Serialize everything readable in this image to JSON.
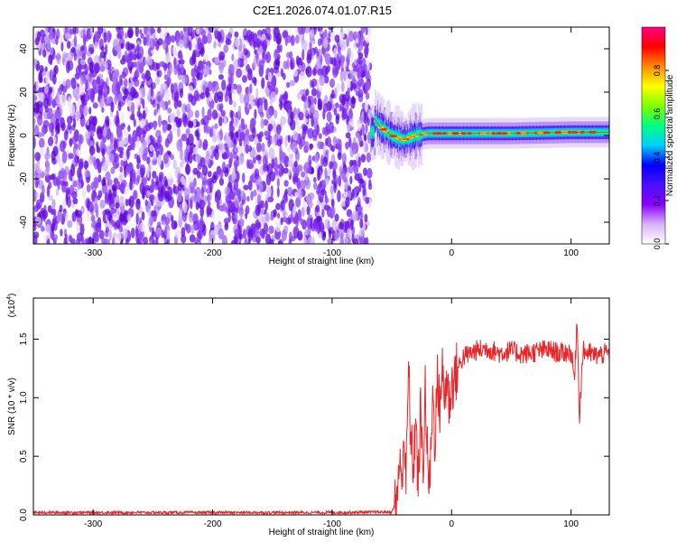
{
  "figure": {
    "title": "C2E1.2026.074.01.07.R15"
  },
  "chart_data": [
    {
      "type": "heatmap",
      "xlabel": "Height of straight line (km)",
      "ylabel": "Frequency (Hz)",
      "xlim": [
        -350,
        132
      ],
      "ylim": [
        -50,
        50
      ],
      "x_ticks": [
        -300,
        -200,
        -100,
        0,
        100
      ],
      "y_ticks": [
        -40,
        -20,
        0,
        20,
        40
      ],
      "colorbar": {
        "label": "Normalized spectral amplitude",
        "range": [
          0,
          1
        ],
        "ticks": [
          "0.0",
          "0.2",
          "0.4",
          "0.6",
          "0.8"
        ],
        "tick_values": [
          0.0,
          0.2,
          0.4,
          0.6,
          0.8
        ],
        "colors": [
          "#ffffff",
          "#d8b4f8",
          "#8b00ff",
          "#4b0fff",
          "#0000ff",
          "#00d0ff",
          "#00ff7f",
          "#7fff00",
          "#ffff00",
          "#ff8c00",
          "#ff0000",
          "#ff0080"
        ]
      },
      "regions": [
        {
          "x_range": [
            -350,
            -68
          ],
          "description_value": "noise",
          "amplitude": 0.15
        },
        {
          "x_range": [
            -68,
            132
          ],
          "signal_frequency": 1.5,
          "amplitude": 0.9
        }
      ],
      "signal_track": [
        {
          "x": -65,
          "y": 8
        },
        {
          "x": -60,
          "y": 4
        },
        {
          "x": -55,
          "y": 2
        },
        {
          "x": -50,
          "y": 0
        },
        {
          "x": -40,
          "y": -2
        },
        {
          "x": -30,
          "y": 0
        },
        {
          "x": -20,
          "y": 1
        },
        {
          "x": 0,
          "y": 1
        },
        {
          "x": 50,
          "y": 1
        },
        {
          "x": 100,
          "y": 1.5
        },
        {
          "x": 132,
          "y": 1.5
        }
      ]
    },
    {
      "type": "line",
      "xlabel": "Height of straight line (km)",
      "ylabel": "SNR (10 * v/v)",
      "y_multiplier": "(x10",
      "y_multiplier_exp": "4",
      "y_multiplier_close": ")",
      "xlim": [
        -350,
        132
      ],
      "ylim": [
        0,
        18500
      ],
      "x_ticks": [
        -300,
        -200,
        -100,
        0,
        100
      ],
      "y_ticks": [
        0,
        5000,
        10000,
        15000
      ],
      "y_tick_labels": [
        "0.0",
        "0.5",
        "1.0",
        "1.5"
      ],
      "series": [
        {
          "color": "#e8262a",
          "x": [
            -350,
            -100,
            -50,
            -46,
            -44,
            -42,
            -40,
            -38,
            -36,
            -34,
            -32,
            -30,
            -28,
            -26,
            -24,
            -22,
            -20,
            -18,
            -16,
            -14,
            -12,
            -10,
            -8,
            -6,
            -4,
            -2,
            0,
            5,
            10,
            20,
            30,
            40,
            50,
            60,
            70,
            80,
            90,
            100,
            103,
            105,
            107,
            110,
            120,
            132
          ],
          "y": [
            200,
            200,
            250,
            1200,
            4500,
            2500,
            7000,
            3000,
            12600,
            6000,
            4000,
            8500,
            2000,
            9000,
            3500,
            11000,
            4000,
            2500,
            10500,
            6500,
            11500,
            9000,
            12500,
            10000,
            11800,
            9500,
            11000,
            12500,
            13500,
            14000,
            14200,
            13800,
            14000,
            13700,
            13900,
            14100,
            13800,
            13900,
            11500,
            17000,
            8500,
            14000,
            13600,
            13800
          ]
        }
      ]
    }
  ]
}
